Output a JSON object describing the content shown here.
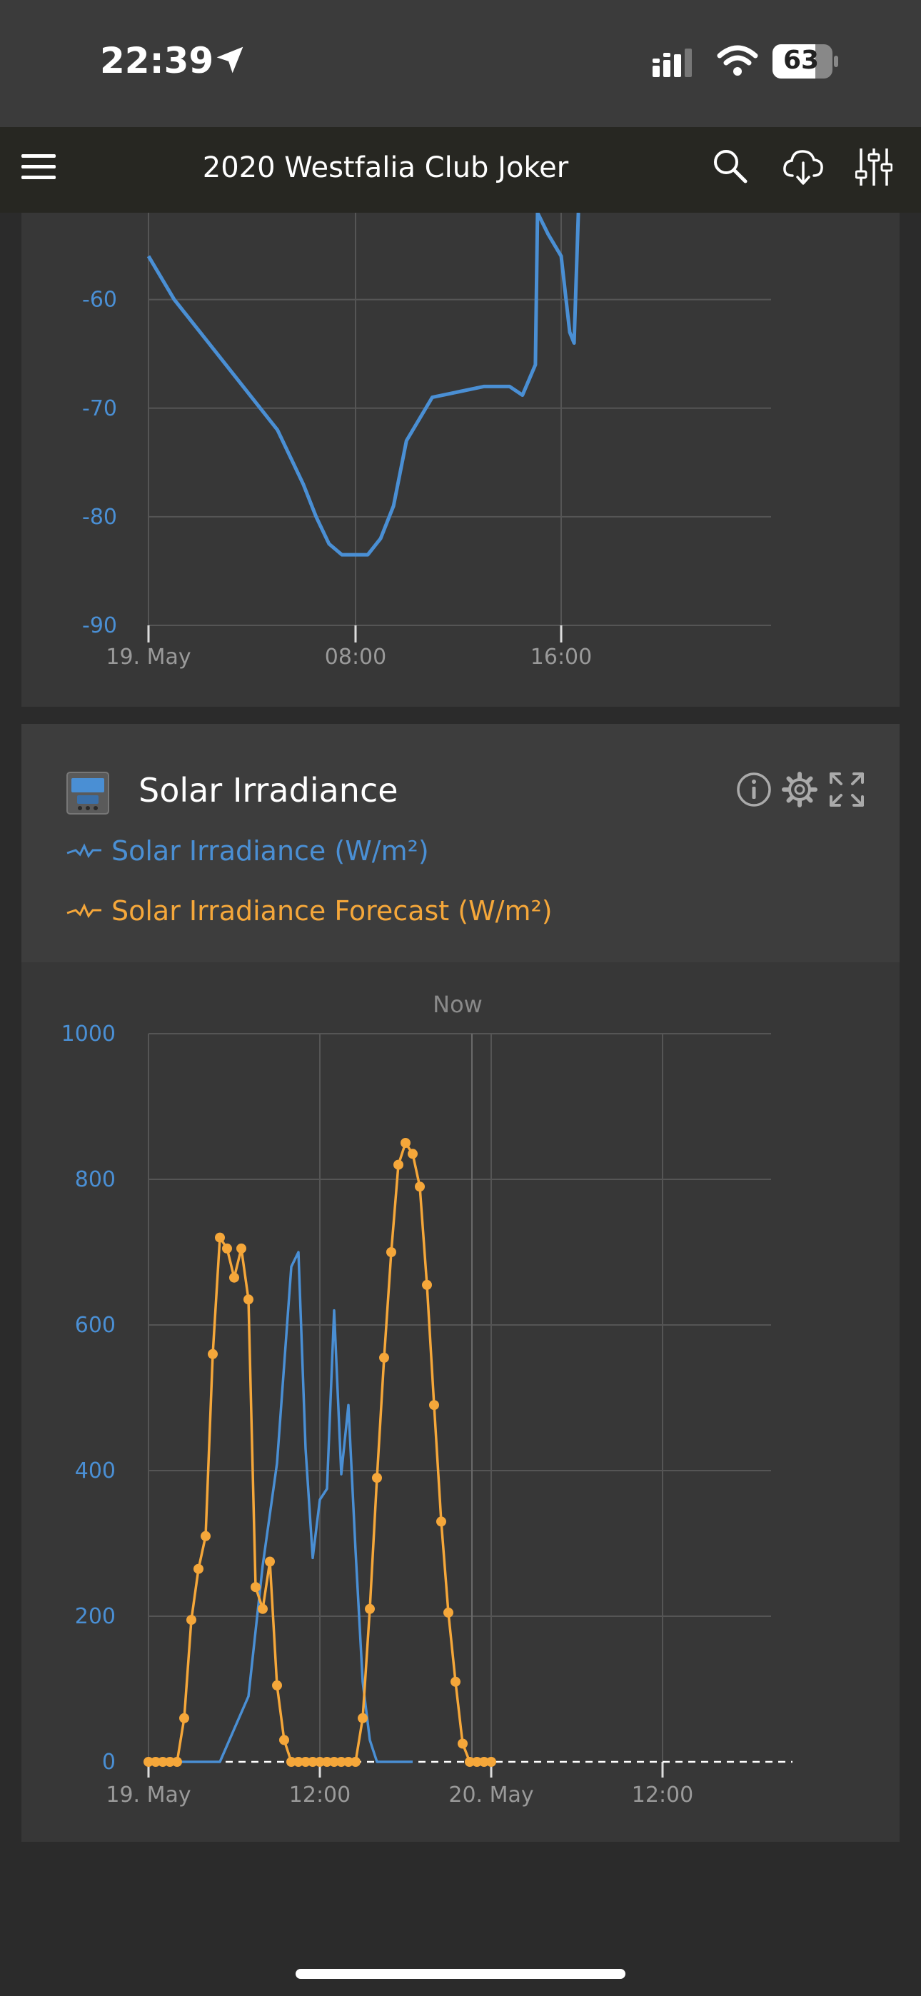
{
  "status_bar": {
    "time": "22:39",
    "battery": "63",
    "icons": [
      "location-arrow-icon",
      "cellular-signal-icon",
      "wifi-icon",
      "battery-icon"
    ]
  },
  "app_bar": {
    "title": "2020 Westfalia Club Joker",
    "icons": [
      "hamburger-menu-icon",
      "search-icon",
      "cloud-download-icon",
      "sliders-icon"
    ]
  },
  "colors": {
    "blue": "#4a8fd4",
    "orange": "#f5a73a",
    "grid": "#555555",
    "axis_text": "#9a9a9a"
  },
  "chart_data": [
    {
      "type": "line",
      "series": [
        {
          "x": [
            "19. May 00:00",
            "01:00",
            "02:00",
            "03:00",
            "04:00",
            "05:00",
            "06:00",
            "06:30",
            "07:00",
            "07:30",
            "08:00",
            "08:30",
            "09:00",
            "09:30",
            "10:00",
            "11:00",
            "12:00",
            "13:00",
            "14:00",
            "14:30",
            "15:00",
            "15:05",
            "15:30",
            "16:00",
            "16:20",
            "16:30",
            "16:40"
          ],
          "values": [
            -56,
            -60,
            -63,
            -66,
            -69,
            -72,
            -77,
            -80,
            -82.5,
            -83.5,
            -83.5,
            -83.5,
            -82,
            -79,
            -73,
            -69,
            -68.5,
            -68,
            -68,
            -68.8,
            -66,
            -51,
            -54,
            -56,
            -63,
            -64,
            -51
          ]
        }
      ],
      "ylim": [
        -90,
        -52
      ],
      "yticks": [
        "-60",
        "-70",
        "-80",
        "-90"
      ],
      "xticks": [
        "19. May",
        "08:00",
        "16:00"
      ],
      "grid": true
    },
    {
      "type": "line",
      "title": "Solar Irradiance",
      "annotation": "Now",
      "series": [
        {
          "name": "Solar Irradiance (W/m²)",
          "x": [
            "19. May 00:00",
            "05:00",
            "06:00",
            "07:00",
            "08:00",
            "09:00",
            "10:00",
            "10:30",
            "11:00",
            "11:30",
            "12:00",
            "12:30",
            "13:00",
            "13:30",
            "14:00",
            "14:30",
            "15:00",
            "15:30",
            "16:00",
            "17:00",
            "18:00",
            "18:30"
          ],
          "values": [
            0,
            0,
            45,
            90,
            270,
            410,
            680,
            700,
            430,
            280,
            360,
            375,
            620,
            395,
            490,
            290,
            110,
            30,
            0,
            0,
            0,
            0
          ]
        },
        {
          "name": "Solar Irradiance Forecast (W/m²)",
          "x": [
            "19. May 00:00",
            "00:30",
            "01:00",
            "01:30",
            "02:00",
            "02:30",
            "03:00",
            "03:30",
            "04:00",
            "04:30",
            "05:00",
            "05:30",
            "06:00",
            "06:30",
            "07:00",
            "07:30",
            "08:00",
            "08:30",
            "09:00",
            "09:30",
            "10:00",
            "10:30",
            "11:00",
            "11:30",
            "12:00",
            "12:30",
            "13:00",
            "13:30",
            "14:00",
            "14:30",
            "15:00",
            "15:30",
            "16:00",
            "16:30",
            "17:00",
            "17:30",
            "18:00",
            "18:30",
            "19:00",
            "19:30",
            "20:00",
            "20:30",
            "21:00",
            "21:30",
            "22:00",
            "22:30",
            "23:00",
            "23:30",
            "20. May 00:00"
          ],
          "values": [
            0,
            0,
            0,
            0,
            0,
            60,
            195,
            265,
            310,
            560,
            720,
            705,
            665,
            705,
            635,
            240,
            210,
            275,
            105,
            30,
            0,
            0,
            0,
            0,
            0,
            0,
            0,
            0,
            0,
            0,
            60,
            210,
            390,
            555,
            700,
            820,
            850,
            835,
            790,
            655,
            490,
            330,
            205,
            110,
            25,
            0,
            0,
            0,
            0
          ]
        }
      ],
      "ylim": [
        0,
        1000
      ],
      "yticks": [
        "0",
        "200",
        "400",
        "600",
        "800",
        "1000"
      ],
      "xticks": [
        "19. May",
        "12:00",
        "20. May",
        "12:00"
      ],
      "grid": true
    }
  ],
  "chart1": {
    "yticks": [
      "-60",
      "-70",
      "-80",
      "-90"
    ],
    "xticks": [
      "19. May",
      "08:00",
      "16:00"
    ]
  },
  "chart2": {
    "widget_title": "Solar Irradiance",
    "legend_actual": "Solar Irradiance (W/m²)",
    "legend_forecast": "Solar Irradiance Forecast (W/m²)",
    "now_label": "Now",
    "yticks": [
      "0",
      "200",
      "400",
      "600",
      "800",
      "1000"
    ],
    "xticks": [
      "19. May",
      "12:00",
      "20. May",
      "12:00"
    ]
  }
}
